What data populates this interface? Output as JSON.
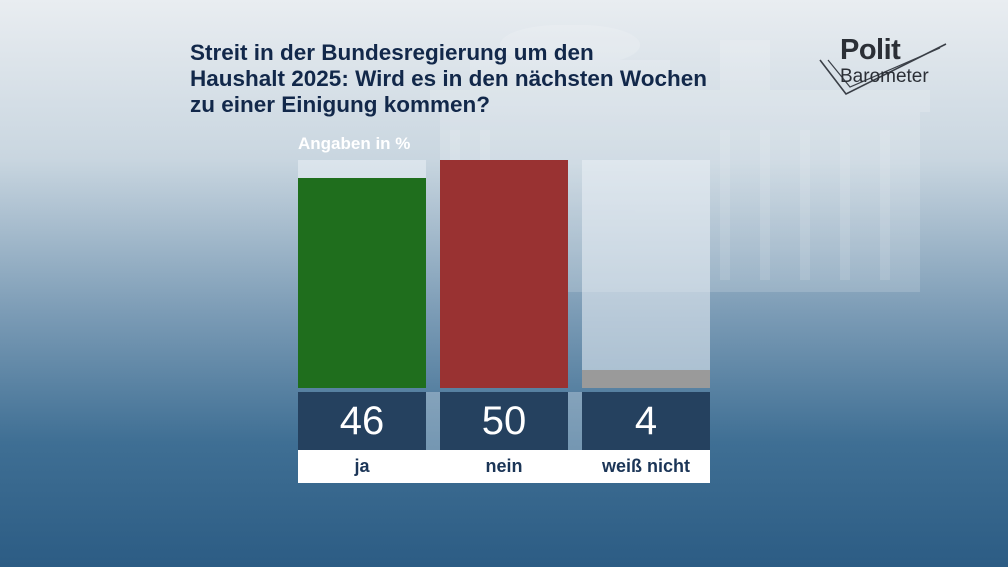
{
  "title_lines": [
    "Streit in der Bundesregierung um den",
    "Haushalt 2025: Wird es in den nächsten Wochen",
    "zu einer Einigung kommen?"
  ],
  "logo": {
    "line1": "Polit",
    "line2": "Barometer"
  },
  "colors": {
    "ja": "#1f6e1d",
    "nein": "#993232",
    "weiss_nicht": "#9a9a9a",
    "value_box": "#25415f",
    "title": "#12284a"
  },
  "chart_data": {
    "type": "bar",
    "title": "Streit in der Bundesregierung um den Haushalt 2025: Wird es in den nächsten Wochen zu einer Einigung kommen?",
    "unit_label": "Angaben in %",
    "categories": [
      "ja",
      "nein",
      "weiß nicht"
    ],
    "values": [
      46,
      50,
      4
    ],
    "colors": [
      "#1f6e1d",
      "#993232",
      "#9a9a9a"
    ],
    "ylim": [
      0,
      50
    ],
    "grid": false,
    "legend": "none"
  }
}
